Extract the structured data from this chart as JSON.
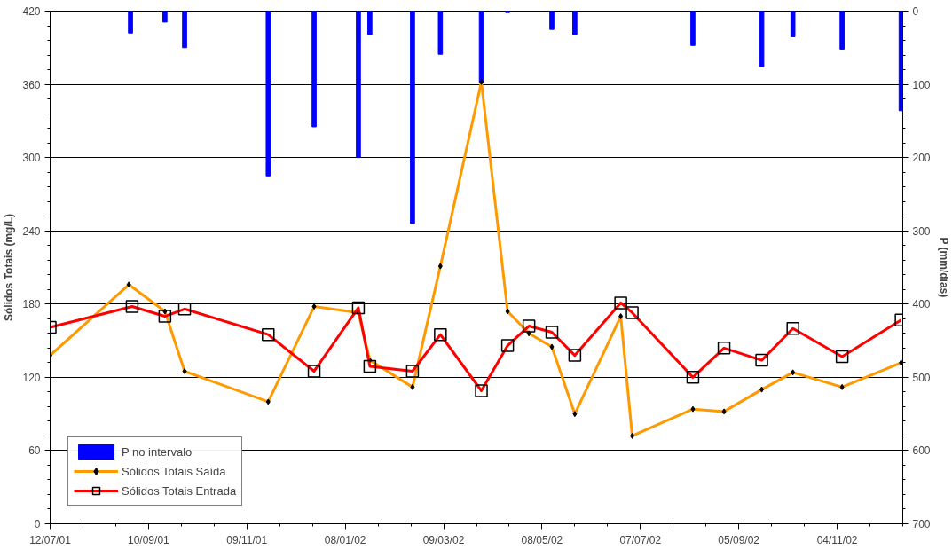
{
  "chart_data": {
    "type": "line",
    "ylabel": "Sólidos Totais (mg/L)",
    "y2label": "P (mm/dias)",
    "xlim": [
      "2001-07-12",
      "2002-12-14"
    ],
    "xticks": [
      {
        "value": "2001-07-12",
        "label": "12/07/01"
      },
      {
        "value": "2001-09-10",
        "label": "10/09/01"
      },
      {
        "value": "2001-11-09",
        "label": "09/11/01"
      },
      {
        "value": "2002-01-08",
        "label": "08/01/02"
      },
      {
        "value": "2002-03-09",
        "label": "09/03/02"
      },
      {
        "value": "2002-05-08",
        "label": "08/05/02"
      },
      {
        "value": "2002-07-07",
        "label": "07/07/02"
      },
      {
        "value": "2002-09-05",
        "label": "05/09/02"
      },
      {
        "value": "2002-11-04",
        "label": "04/11/02"
      }
    ],
    "ylim": [
      0,
      420
    ],
    "yticks": [
      0,
      60,
      120,
      180,
      240,
      300,
      360,
      420
    ],
    "y2lim": [
      700,
      0
    ],
    "y2ticks": [
      0,
      100,
      200,
      300,
      400,
      500,
      600,
      700
    ],
    "grid": "y",
    "legend": "bottom left",
    "series": [
      {
        "name": "P no intervalo",
        "type": "bar",
        "axis": "y2",
        "color": "#0000ff",
        "x": [
          "2001-08-30",
          "2001-09-20",
          "2001-10-02",
          "2001-11-22",
          "2001-12-20",
          "2002-01-16",
          "2002-01-23",
          "2002-02-18",
          "2002-03-07",
          "2002-04-01",
          "2002-04-17",
          "2002-05-14",
          "2002-05-28",
          "2002-08-08",
          "2002-09-19",
          "2002-10-08",
          "2002-11-07",
          "2002-12-13"
        ],
        "values": [
          30,
          15,
          50,
          225,
          158,
          200,
          32,
          290,
          59,
          97,
          2,
          25,
          32,
          47,
          76,
          35,
          52,
          136
        ]
      },
      {
        "name": "Sólidos Totais Saída",
        "color": "#ff9900",
        "marker": "diamond",
        "x": [
          "2001-07-12",
          "2001-08-29",
          "2001-09-20",
          "2001-10-02",
          "2001-11-22",
          "2001-12-20",
          "2002-01-16",
          "2002-01-23",
          "2002-02-18",
          "2002-03-07",
          "2002-04-01",
          "2002-04-17",
          "2002-04-30",
          "2002-05-14",
          "2002-05-28",
          "2002-06-25",
          "2002-07-02",
          "2002-08-08",
          "2002-08-27",
          "2002-09-19",
          "2002-10-08",
          "2002-11-07",
          "2002-12-13"
        ],
        "values": [
          138,
          196,
          174,
          125,
          100,
          178,
          173,
          134,
          112,
          211,
          362,
          174,
          156,
          145,
          90,
          170,
          72,
          94,
          92,
          110,
          124,
          112,
          132
        ]
      },
      {
        "name": "Sólidos Totais Entrada",
        "color": "#ff0000",
        "marker": "square",
        "x": [
          "2001-07-12",
          "2001-08-31",
          "2001-09-20",
          "2001-10-02",
          "2001-11-22",
          "2001-12-20",
          "2002-01-16",
          "2002-01-23",
          "2002-02-18",
          "2002-03-07",
          "2002-04-01",
          "2002-04-17",
          "2002-04-30",
          "2002-05-14",
          "2002-05-28",
          "2002-06-25",
          "2002-07-02",
          "2002-08-08",
          "2002-08-27",
          "2002-09-19",
          "2002-10-08",
          "2002-11-07",
          "2002-12-13"
        ],
        "values": [
          161,
          178,
          170,
          176,
          155,
          125,
          177,
          129,
          125,
          155,
          109,
          146,
          162,
          157,
          138,
          181,
          173,
          120,
          144,
          134,
          160,
          137,
          167
        ]
      }
    ]
  }
}
